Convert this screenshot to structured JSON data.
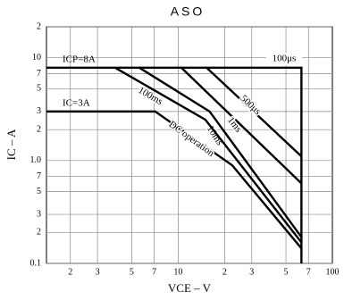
{
  "chart_data": {
    "type": "line",
    "title": "ASO",
    "xlabel": "VCE – V",
    "ylabel": "IC – A",
    "annotations": [
      "ICP=8A",
      "IC=3A"
    ],
    "log_x": true,
    "log_y": true,
    "grid": true,
    "xlim": [
      1.4,
      100
    ],
    "ylim": [
      0.1,
      20
    ],
    "xticks": [
      2,
      3,
      5,
      7,
      10,
      {
        "value": 20,
        "label": "2"
      },
      {
        "value": 30,
        "label": "3"
      },
      {
        "value": 50,
        "label": "5"
      },
      {
        "value": 70,
        "label": "7"
      },
      100
    ],
    "yticks": [
      0.1,
      {
        "value": 0.2,
        "label": "2"
      },
      {
        "value": 0.3,
        "label": "3"
      },
      {
        "value": 0.5,
        "label": "5"
      },
      {
        "value": 0.7,
        "label": "7"
      },
      {
        "value": 1,
        "label": "1.0"
      },
      2,
      3,
      5,
      7,
      10,
      {
        "value": 20,
        "label": "2"
      }
    ],
    "series": [
      {
        "name": "100μs",
        "color": "#000000",
        "x": [
          1.4,
          63,
          63
        ],
        "values": [
          8,
          8,
          0.1
        ]
      },
      {
        "name": "500μs",
        "color": "#000000",
        "x": [
          15.3,
          63
        ],
        "values": [
          8,
          1.1
        ]
      },
      {
        "name": "1ms",
        "color": "#000000",
        "x": [
          10.5,
          63
        ],
        "values": [
          8,
          0.6
        ]
      },
      {
        "name": "10ms",
        "color": "#000000",
        "x": [
          5.6,
          16,
          63
        ],
        "values": [
          8,
          3,
          0.18
        ]
      },
      {
        "name": "100ms",
        "color": "#000000",
        "x": [
          3.9,
          15,
          63
        ],
        "values": [
          8,
          2.5,
          0.16
        ]
      },
      {
        "name": "DC operation",
        "color": "#000000",
        "x": [
          1.4,
          7.1,
          22.4,
          63
        ],
        "values": [
          3,
          3,
          0.9,
          0.14
        ]
      }
    ]
  }
}
